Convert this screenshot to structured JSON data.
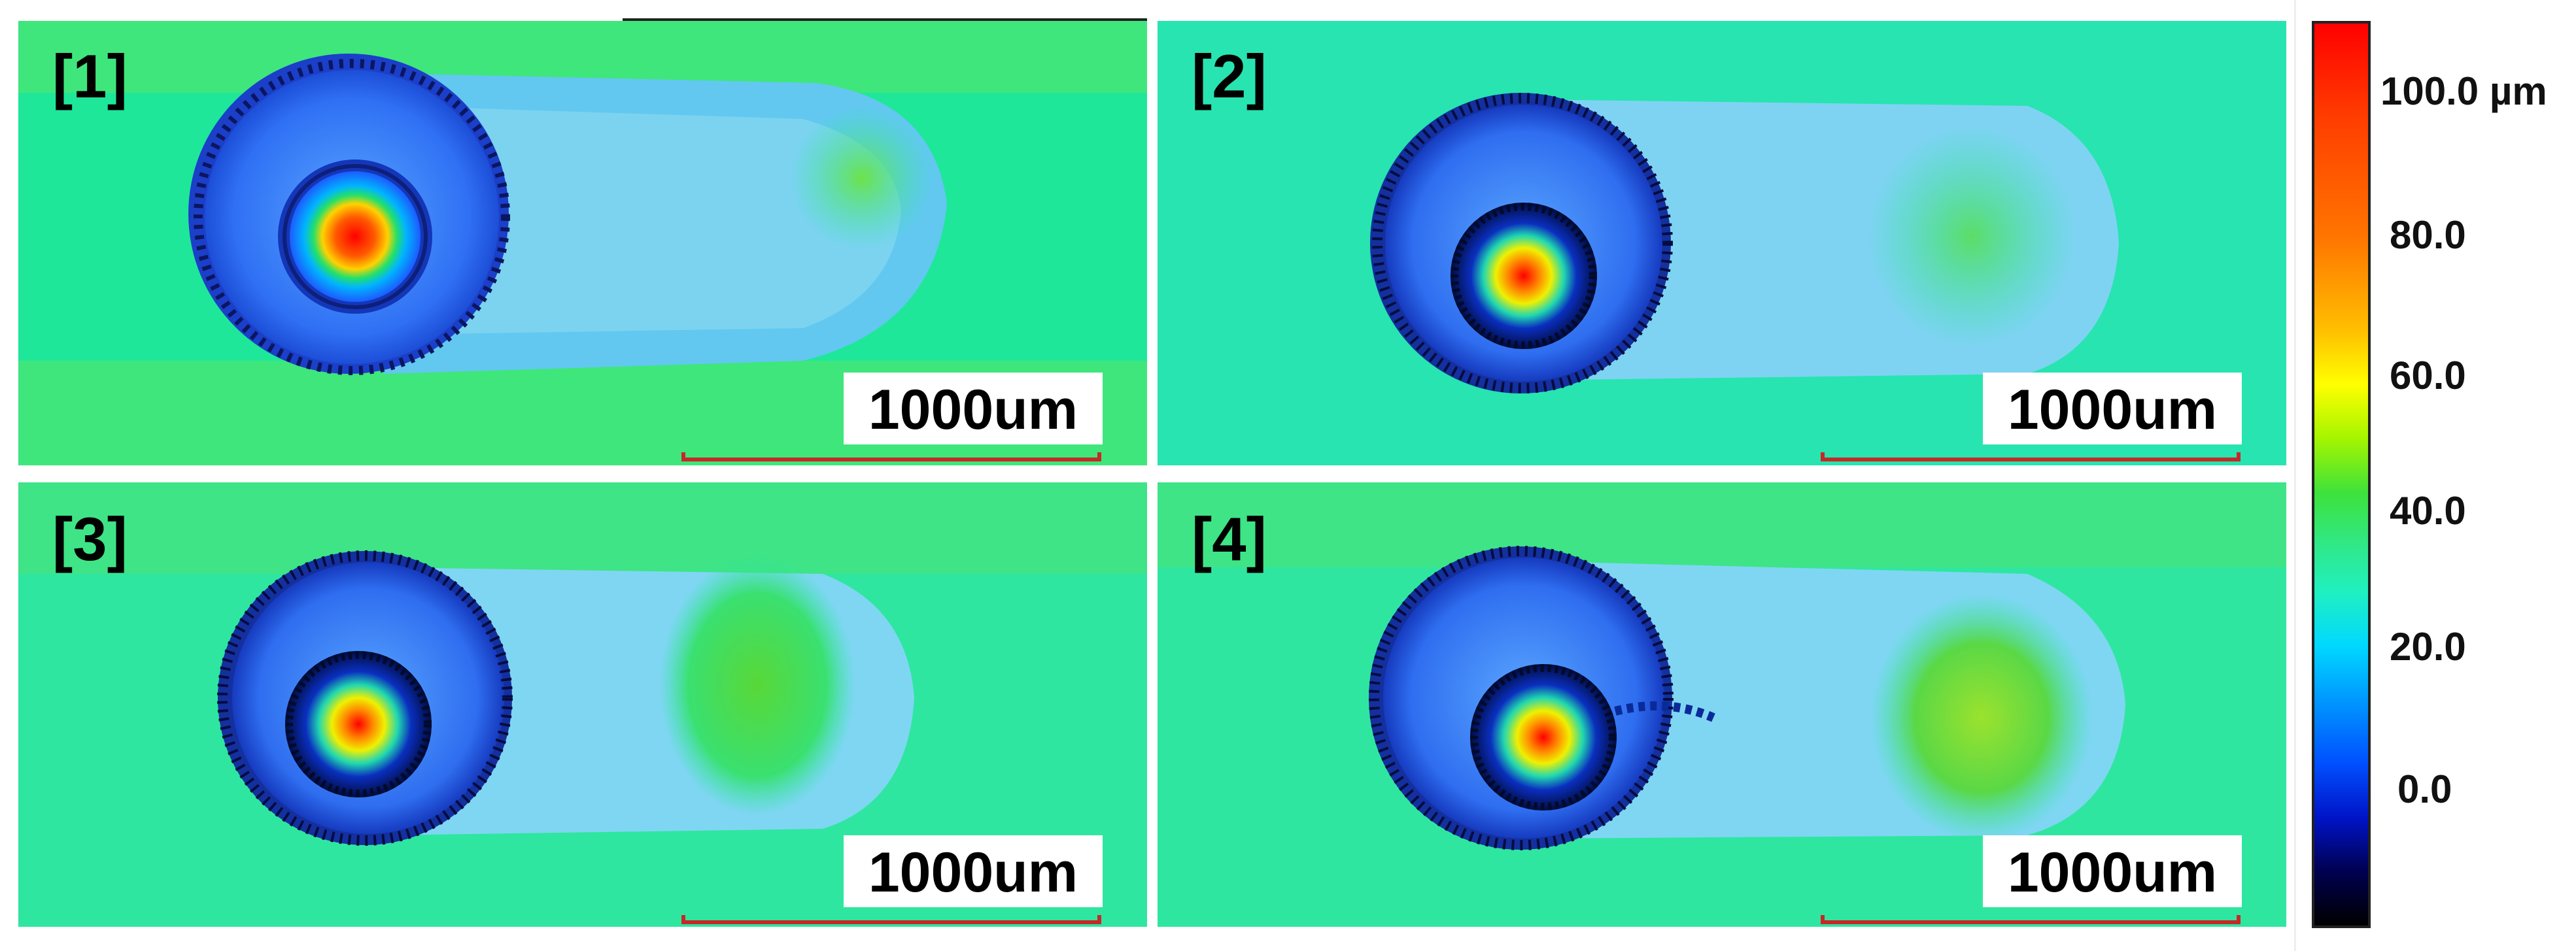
{
  "panels": [
    {
      "label": "[1]",
      "scale": "1000um"
    },
    {
      "label": "[2]",
      "scale": "1000um"
    },
    {
      "label": "[3]",
      "scale": "1000um"
    },
    {
      "label": "[4]",
      "scale": "1000um"
    }
  ],
  "colorbar": {
    "ticks": [
      "100.0 µm",
      "80.0",
      "60.0",
      "40.0",
      "20.0",
      "0.0"
    ],
    "colors": [
      "#ff0000",
      "#ff7700",
      "#ffff00",
      "#3ee23a",
      "#00d8ff",
      "#0050ff",
      "#000000"
    ]
  }
}
